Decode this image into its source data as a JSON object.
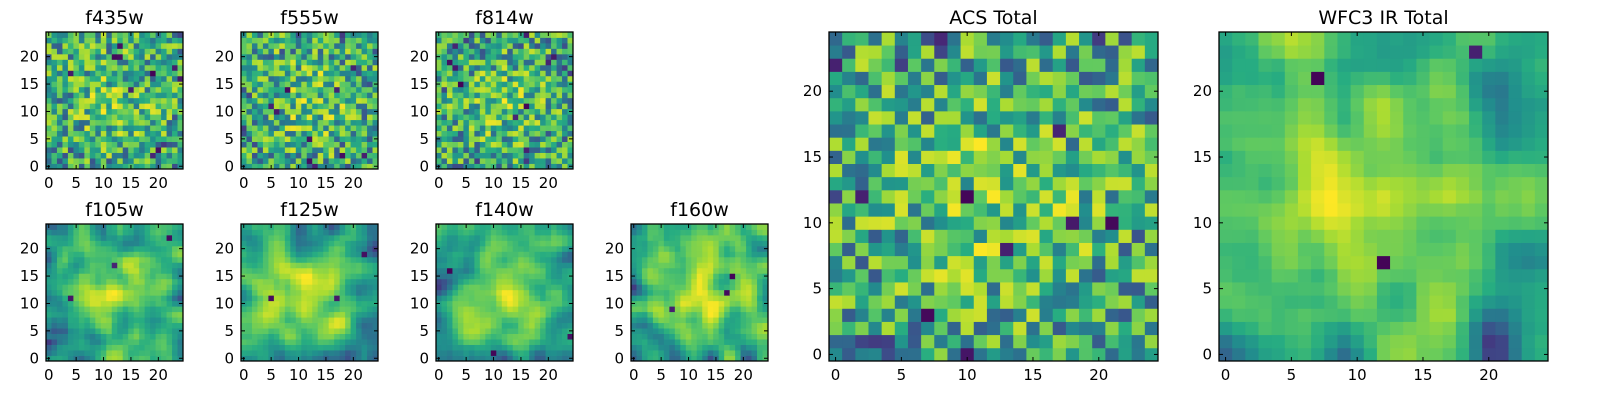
{
  "chart_data": [
    {
      "type": "heatmap",
      "title": "f435w",
      "rows": 25,
      "cols": 25,
      "xticks": [
        0,
        5,
        10,
        15,
        20
      ],
      "yticks": [
        0,
        5,
        10,
        15,
        20
      ],
      "xlim": [
        0,
        25
      ],
      "ylim": [
        0,
        25
      ],
      "colormap": "viridis",
      "pattern": "noise",
      "seed": 11
    },
    {
      "type": "heatmap",
      "title": "f555w",
      "rows": 25,
      "cols": 25,
      "xticks": [
        0,
        5,
        10,
        15,
        20
      ],
      "yticks": [
        0,
        5,
        10,
        15,
        20
      ],
      "xlim": [
        0,
        25
      ],
      "ylim": [
        0,
        25
      ],
      "colormap": "viridis",
      "pattern": "noise",
      "seed": 23
    },
    {
      "type": "heatmap",
      "title": "f814w",
      "rows": 25,
      "cols": 25,
      "xticks": [
        0,
        5,
        10,
        15,
        20
      ],
      "yticks": [
        0,
        5,
        10,
        15,
        20
      ],
      "xlim": [
        0,
        25
      ],
      "ylim": [
        0,
        25
      ],
      "colormap": "viridis",
      "pattern": "noise",
      "seed": 37
    },
    {
      "type": "heatmap",
      "title": "f105w",
      "rows": 25,
      "cols": 25,
      "xticks": [
        0,
        5,
        10,
        15,
        20
      ],
      "yticks": [
        0,
        5,
        10,
        15,
        20
      ],
      "xlim": [
        0,
        25
      ],
      "ylim": [
        0,
        25
      ],
      "colormap": "viridis",
      "pattern": "smooth",
      "seed": 41
    },
    {
      "type": "heatmap",
      "title": "f125w",
      "rows": 25,
      "cols": 25,
      "xticks": [
        0,
        5,
        10,
        15,
        20
      ],
      "yticks": [
        0,
        5,
        10,
        15,
        20
      ],
      "xlim": [
        0,
        25
      ],
      "ylim": [
        0,
        25
      ],
      "colormap": "viridis",
      "pattern": "smooth",
      "seed": 53
    },
    {
      "type": "heatmap",
      "title": "f140w",
      "rows": 25,
      "cols": 25,
      "xticks": [
        0,
        5,
        10,
        15,
        20
      ],
      "yticks": [
        0,
        5,
        10,
        15,
        20
      ],
      "xlim": [
        0,
        25
      ],
      "ylim": [
        0,
        25
      ],
      "colormap": "viridis",
      "pattern": "smooth",
      "seed": 67
    },
    {
      "type": "heatmap",
      "title": "f160w",
      "rows": 25,
      "cols": 25,
      "xticks": [
        0,
        5,
        10,
        15,
        20
      ],
      "yticks": [
        0,
        5,
        10,
        15,
        20
      ],
      "xlim": [
        0,
        25
      ],
      "ylim": [
        0,
        25
      ],
      "colormap": "viridis",
      "pattern": "smooth",
      "seed": 79
    },
    {
      "type": "heatmap",
      "title": "ACS Total",
      "rows": 25,
      "cols": 25,
      "xticks": [
        0,
        5,
        10,
        15,
        20
      ],
      "yticks": [
        0,
        5,
        10,
        15,
        20
      ],
      "xlim": [
        0,
        25
      ],
      "ylim": [
        0,
        25
      ],
      "colormap": "viridis",
      "pattern": "noise",
      "seed": 97
    },
    {
      "type": "heatmap",
      "title": "WFC3 IR Total",
      "rows": 25,
      "cols": 25,
      "xticks": [
        0,
        5,
        10,
        15,
        20
      ],
      "yticks": [
        0,
        5,
        10,
        15,
        20
      ],
      "xlim": [
        0,
        25
      ],
      "ylim": [
        0,
        25
      ],
      "colormap": "viridis",
      "pattern": "smooth",
      "seed": 131
    }
  ]
}
